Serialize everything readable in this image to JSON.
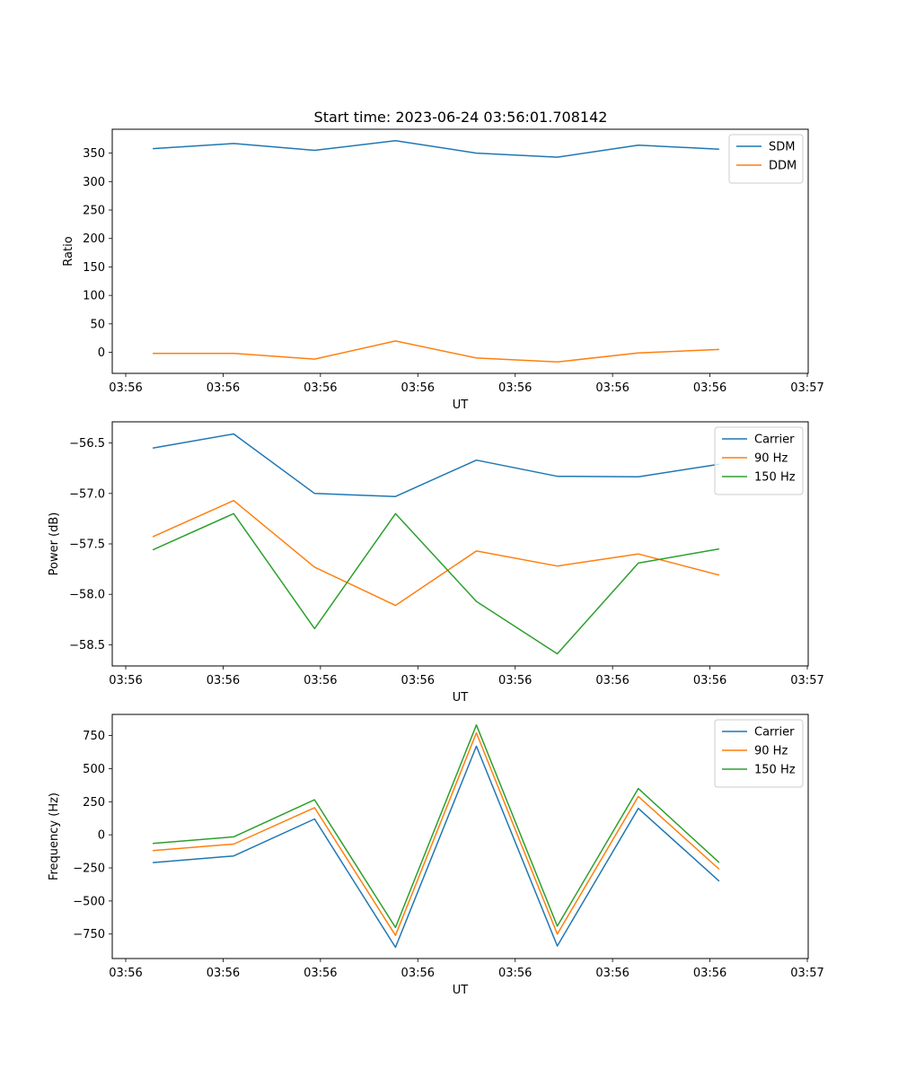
{
  "figure": {
    "title": "Start time: 2023-06-24 03:56:01.708142"
  },
  "chart_data": [
    {
      "type": "line",
      "title": "Start time: 2023-06-24 03:56:01.708142",
      "xlabel": "UT",
      "ylabel": "Ratio",
      "x_tick_labels": [
        "03:56",
        "03:56",
        "03:56",
        "03:56",
        "03:56",
        "03:56",
        "03:56"
      ],
      "x_last_tick_label": "03:57",
      "x": [
        1,
        2,
        3,
        4,
        5,
        6,
        7,
        8
      ],
      "xlim": [
        0.5,
        9.1
      ],
      "ylim": [
        -37,
        392
      ],
      "yticks": [
        0,
        50,
        100,
        150,
        200,
        250,
        300,
        350
      ],
      "ytick_labels": [
        "0",
        "50",
        "100",
        "150",
        "200",
        "250",
        "300",
        "350"
      ],
      "legend_position": "top-right",
      "series": [
        {
          "name": "SDM",
          "color": "#1f77b4",
          "values": [
            358,
            367,
            355,
            372,
            350,
            343,
            364,
            357
          ]
        },
        {
          "name": "DDM",
          "color": "#ff7f0e",
          "values": [
            -2,
            -2,
            -12,
            20,
            -10,
            -17,
            -1,
            5
          ]
        }
      ]
    },
    {
      "type": "line",
      "title": "",
      "xlabel": "UT",
      "ylabel": "Power (dB)",
      "x_tick_labels": [
        "03:56",
        "03:56",
        "03:56",
        "03:56",
        "03:56",
        "03:56",
        "03:56"
      ],
      "x_last_tick_label": "03:57",
      "x": [
        1,
        2,
        3,
        4,
        5,
        6,
        7,
        8
      ],
      "xlim": [
        0.5,
        9.1
      ],
      "ylim": [
        -58.71,
        -56.29
      ],
      "yticks": [
        -56.5,
        -57.0,
        -57.5,
        -58.0,
        -58.5
      ],
      "ytick_labels": [
        "−56.5",
        "−57.0",
        "−57.5",
        "−58.0",
        "−58.5"
      ],
      "legend_position": "top-right",
      "series": [
        {
          "name": "Carrier",
          "color": "#1f77b4",
          "values": [
            -56.55,
            -56.41,
            -57.0,
            -57.03,
            -56.67,
            -56.83,
            -56.835,
            -56.71
          ]
        },
        {
          "name": "90 Hz",
          "color": "#ff7f0e",
          "values": [
            -57.43,
            -57.07,
            -57.73,
            -58.11,
            -57.57,
            -57.72,
            -57.6,
            -57.81
          ]
        },
        {
          "name": "150 Hz",
          "color": "#2ca02c",
          "values": [
            -57.56,
            -57.2,
            -58.34,
            -57.2,
            -58.07,
            -58.59,
            -57.69,
            -57.55
          ]
        }
      ]
    },
    {
      "type": "line",
      "title": "",
      "xlabel": "UT",
      "ylabel": "Frequency (Hz)",
      "x_tick_labels": [
        "03:56",
        "03:56",
        "03:56",
        "03:56",
        "03:56",
        "03:56",
        "03:56"
      ],
      "x_last_tick_label": "03:57",
      "x": [
        1,
        2,
        3,
        4,
        5,
        6,
        7,
        8
      ],
      "xlim": [
        0.5,
        9.1
      ],
      "ylim": [
        -935,
        910
      ],
      "yticks": [
        750,
        500,
        250,
        0,
        -250,
        -500,
        -750
      ],
      "ytick_labels": [
        "750",
        "500",
        "250",
        "0",
        "−250",
        "−500",
        "−750"
      ],
      "legend_position": "top-right",
      "series": [
        {
          "name": "Carrier",
          "color": "#1f77b4",
          "values": [
            -210,
            -160,
            120,
            -850,
            670,
            -840,
            200,
            -350
          ]
        },
        {
          "name": "90 Hz",
          "color": "#ff7f0e",
          "values": [
            -120,
            -70,
            205,
            -760,
            770,
            -750,
            290,
            -260
          ]
        },
        {
          "name": "150 Hz",
          "color": "#2ca02c",
          "values": [
            -65,
            -15,
            265,
            -700,
            830,
            -690,
            350,
            -210
          ]
        }
      ]
    }
  ]
}
